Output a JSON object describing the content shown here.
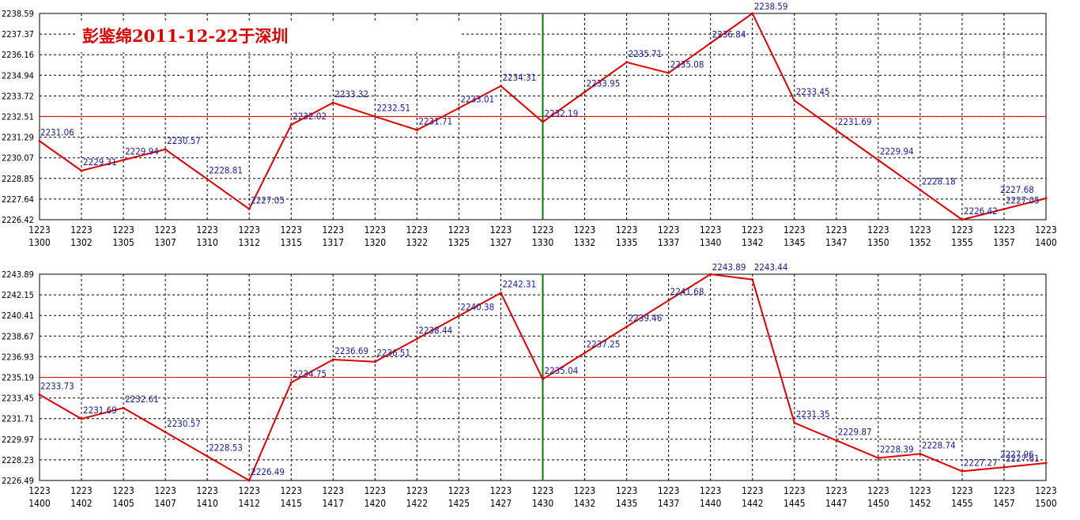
{
  "title": "彭鉴绵2011-12-22于深圳",
  "colors": {
    "series": "#e00000",
    "reference": "#e00000",
    "current": "#008000",
    "label": "#1a1aa0"
  },
  "chart_data": [
    {
      "type": "line",
      "ylim": [
        2226.42,
        2238.59
      ],
      "yticks": [
        "2238.59",
        "2237.37",
        "2236.16",
        "2234.94",
        "2233.72",
        "2232.51",
        "2231.29",
        "2230.07",
        "2228.85",
        "2227.64",
        "2226.42"
      ],
      "reference_value": 2232.51,
      "current_index": 12,
      "categories": [
        [
          "1223",
          "1300"
        ],
        [
          "1223",
          "1302"
        ],
        [
          "1223",
          "1305"
        ],
        [
          "1223",
          "1307"
        ],
        [
          "1223",
          "1310"
        ],
        [
          "1223",
          "1312"
        ],
        [
          "1223",
          "1315"
        ],
        [
          "1223",
          "1317"
        ],
        [
          "1223",
          "1320"
        ],
        [
          "1223",
          "1322"
        ],
        [
          "1223",
          "1325"
        ],
        [
          "1223",
          "1327"
        ],
        [
          "1223",
          "1330"
        ],
        [
          "1223",
          "1332"
        ],
        [
          "1223",
          "1335"
        ],
        [
          "1223",
          "1337"
        ],
        [
          "1223",
          "1340"
        ],
        [
          "1223",
          "1342"
        ],
        [
          "1223",
          "1345"
        ],
        [
          "1223",
          "1347"
        ],
        [
          "1223",
          "1350"
        ],
        [
          "1223",
          "1352"
        ],
        [
          "1223",
          "1355"
        ],
        [
          "1223",
          "1357"
        ],
        [
          "1223",
          "1400"
        ]
      ],
      "values": [
        2231.06,
        2229.31,
        2229.94,
        2230.57,
        2228.81,
        2227.05,
        2232.02,
        2233.32,
        2232.51,
        2231.71,
        2233.01,
        2234.31,
        2232.19,
        2233.95,
        2235.71,
        2235.08,
        2236.84,
        2238.59,
        2233.45,
        2231.69,
        2229.94,
        2228.18,
        2226.42,
        2227.05,
        2227.68
      ],
      "labels": [
        "2231.06",
        "2229.31",
        "2229.94",
        "2230.57",
        "2228.81",
        "2227.05",
        "2232.02",
        "2233.32",
        "2232.51",
        "2231.71",
        "2233.01",
        "2234.31",
        "2232.19",
        "2233.95",
        "2235.71",
        "2235.08",
        "2236.84",
        "2238.59",
        "2233.45",
        "2231.69",
        "2229.94",
        "2228.18",
        "2226.42",
        "2227.05",
        "2227.68"
      ]
    },
    {
      "type": "line",
      "ylim": [
        2226.49,
        2243.89
      ],
      "yticks": [
        "2243.89",
        "2242.15",
        "2240.41",
        "2238.67",
        "2236.93",
        "2235.19",
        "2233.45",
        "2231.71",
        "2229.97",
        "2228.23",
        "2226.49"
      ],
      "reference_value": 2235.19,
      "current_index": 12,
      "categories": [
        [
          "1223",
          "1400"
        ],
        [
          "1223",
          "1402"
        ],
        [
          "1223",
          "1405"
        ],
        [
          "1223",
          "1407"
        ],
        [
          "1223",
          "1410"
        ],
        [
          "1223",
          "1412"
        ],
        [
          "1223",
          "1415"
        ],
        [
          "1223",
          "1417"
        ],
        [
          "1223",
          "1420"
        ],
        [
          "1223",
          "1422"
        ],
        [
          "1223",
          "1425"
        ],
        [
          "1223",
          "1427"
        ],
        [
          "1223",
          "1430"
        ],
        [
          "1223",
          "1432"
        ],
        [
          "1223",
          "1435"
        ],
        [
          "1223",
          "1437"
        ],
        [
          "1223",
          "1440"
        ],
        [
          "1223",
          "1442"
        ],
        [
          "1223",
          "1445"
        ],
        [
          "1223",
          "1447"
        ],
        [
          "1223",
          "1450"
        ],
        [
          "1223",
          "1452"
        ],
        [
          "1223",
          "1455"
        ],
        [
          "1223",
          "1457"
        ],
        [
          "1223",
          "1500"
        ]
      ],
      "values": [
        2233.73,
        2231.69,
        2232.61,
        2230.57,
        2228.53,
        2226.49,
        2234.75,
        2236.69,
        2236.51,
        2238.44,
        2240.38,
        2242.31,
        2235.04,
        2237.25,
        2239.46,
        2241.68,
        2243.89,
        2243.44,
        2231.35,
        2229.87,
        2228.39,
        2228.74,
        2227.27,
        2227.61,
        2227.96
      ],
      "labels": [
        "2233.73",
        "2231.69",
        "2232.61",
        "2230.57",
        "2228.53",
        "2226.49",
        "2234.75",
        "2236.69",
        "2236.51",
        "2238.44",
        "2240.38",
        "2242.31",
        "2235.04",
        "2237.25",
        "2239.46",
        "2241.68",
        "2243.89",
        "2243.44",
        "2231.35",
        "2229.87",
        "2228.39",
        "2228.74",
        "2227.27",
        "2227.61",
        "2227.96"
      ]
    }
  ]
}
